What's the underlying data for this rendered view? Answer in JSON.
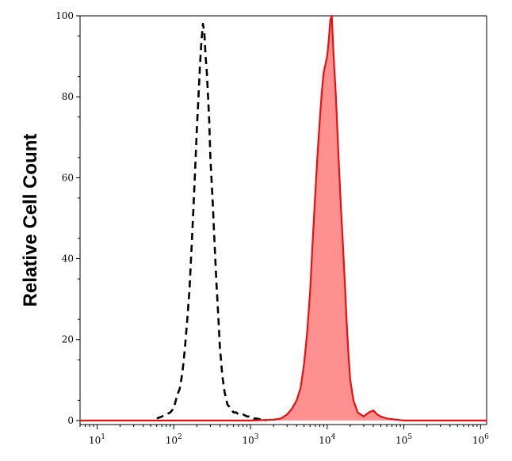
{
  "chart_data": {
    "type": "area",
    "ylabel": "Relative Cell Count",
    "xlabel": "",
    "x_scale": "log",
    "xlim": [
      6,
      1200000
    ],
    "ylim": [
      -1,
      100
    ],
    "x_ticks": [
      {
        "value": 10,
        "mantissa": "10",
        "exp": "1"
      },
      {
        "value": 100,
        "mantissa": "10",
        "exp": "2"
      },
      {
        "value": 1000,
        "mantissa": "10",
        "exp": "3"
      },
      {
        "value": 10000,
        "mantissa": "10",
        "exp": "4"
      },
      {
        "value": 100000,
        "mantissa": "10",
        "exp": "5"
      },
      {
        "value": 1000000,
        "mantissa": "10",
        "exp": "6"
      }
    ],
    "y_ticks": [
      "0",
      "20",
      "40",
      "60",
      "80",
      "100"
    ],
    "y_tick_values": [
      0,
      20,
      40,
      60,
      80,
      100
    ],
    "series": [
      {
        "style": "dashed",
        "color": "#000000",
        "x": [
          60,
          70,
          80,
          90,
          100,
          110,
          120,
          130,
          140,
          150,
          160,
          170,
          180,
          190,
          200,
          210,
          220,
          230,
          240,
          250,
          260,
          270,
          280,
          290,
          300,
          320,
          340,
          360,
          380,
          400,
          430,
          460,
          500,
          550,
          600,
          650,
          700,
          800,
          900,
          1000,
          1100,
          1200,
          1400,
          1600
        ],
        "y": [
          0.5,
          1,
          1.5,
          2,
          3,
          6,
          8,
          12,
          18,
          25,
          32,
          42,
          52,
          62,
          72,
          80,
          88,
          94,
          98,
          96,
          90,
          86,
          80,
          74,
          65,
          55,
          44,
          34,
          26,
          18,
          11,
          7,
          4,
          3,
          2,
          2,
          1.5,
          1.5,
          1,
          1,
          0.5,
          0.5,
          0.2,
          0
        ]
      },
      {
        "style": "filled",
        "color": "#e81010",
        "fill": "#ff9090",
        "x": [
          1,
          5,
          10,
          50,
          100,
          500,
          1000,
          2000,
          2500,
          3000,
          3500,
          4000,
          4500,
          5000,
          5500,
          6000,
          6500,
          7000,
          7500,
          8000,
          8500,
          9000,
          9500,
          10000,
          10500,
          11000,
          11500,
          12000,
          13000,
          14000,
          15000,
          16000,
          17000,
          18000,
          19000,
          20000,
          22000,
          25000,
          30000,
          35000,
          40000,
          45000,
          50000,
          60000,
          80000,
          100000,
          200000,
          500000,
          1200000
        ],
        "y": [
          0,
          0,
          0,
          0,
          0,
          0,
          0,
          0.2,
          0.5,
          1.5,
          3,
          5,
          8,
          14,
          22,
          32,
          45,
          56,
          66,
          74,
          81,
          86,
          88,
          90,
          94,
          99,
          100,
          92,
          80,
          66,
          54,
          44,
          34,
          24,
          16,
          10,
          5,
          2,
          1,
          2,
          2.5,
          1.5,
          1,
          0.5,
          0.2,
          0,
          0,
          0,
          0
        ]
      }
    ]
  }
}
